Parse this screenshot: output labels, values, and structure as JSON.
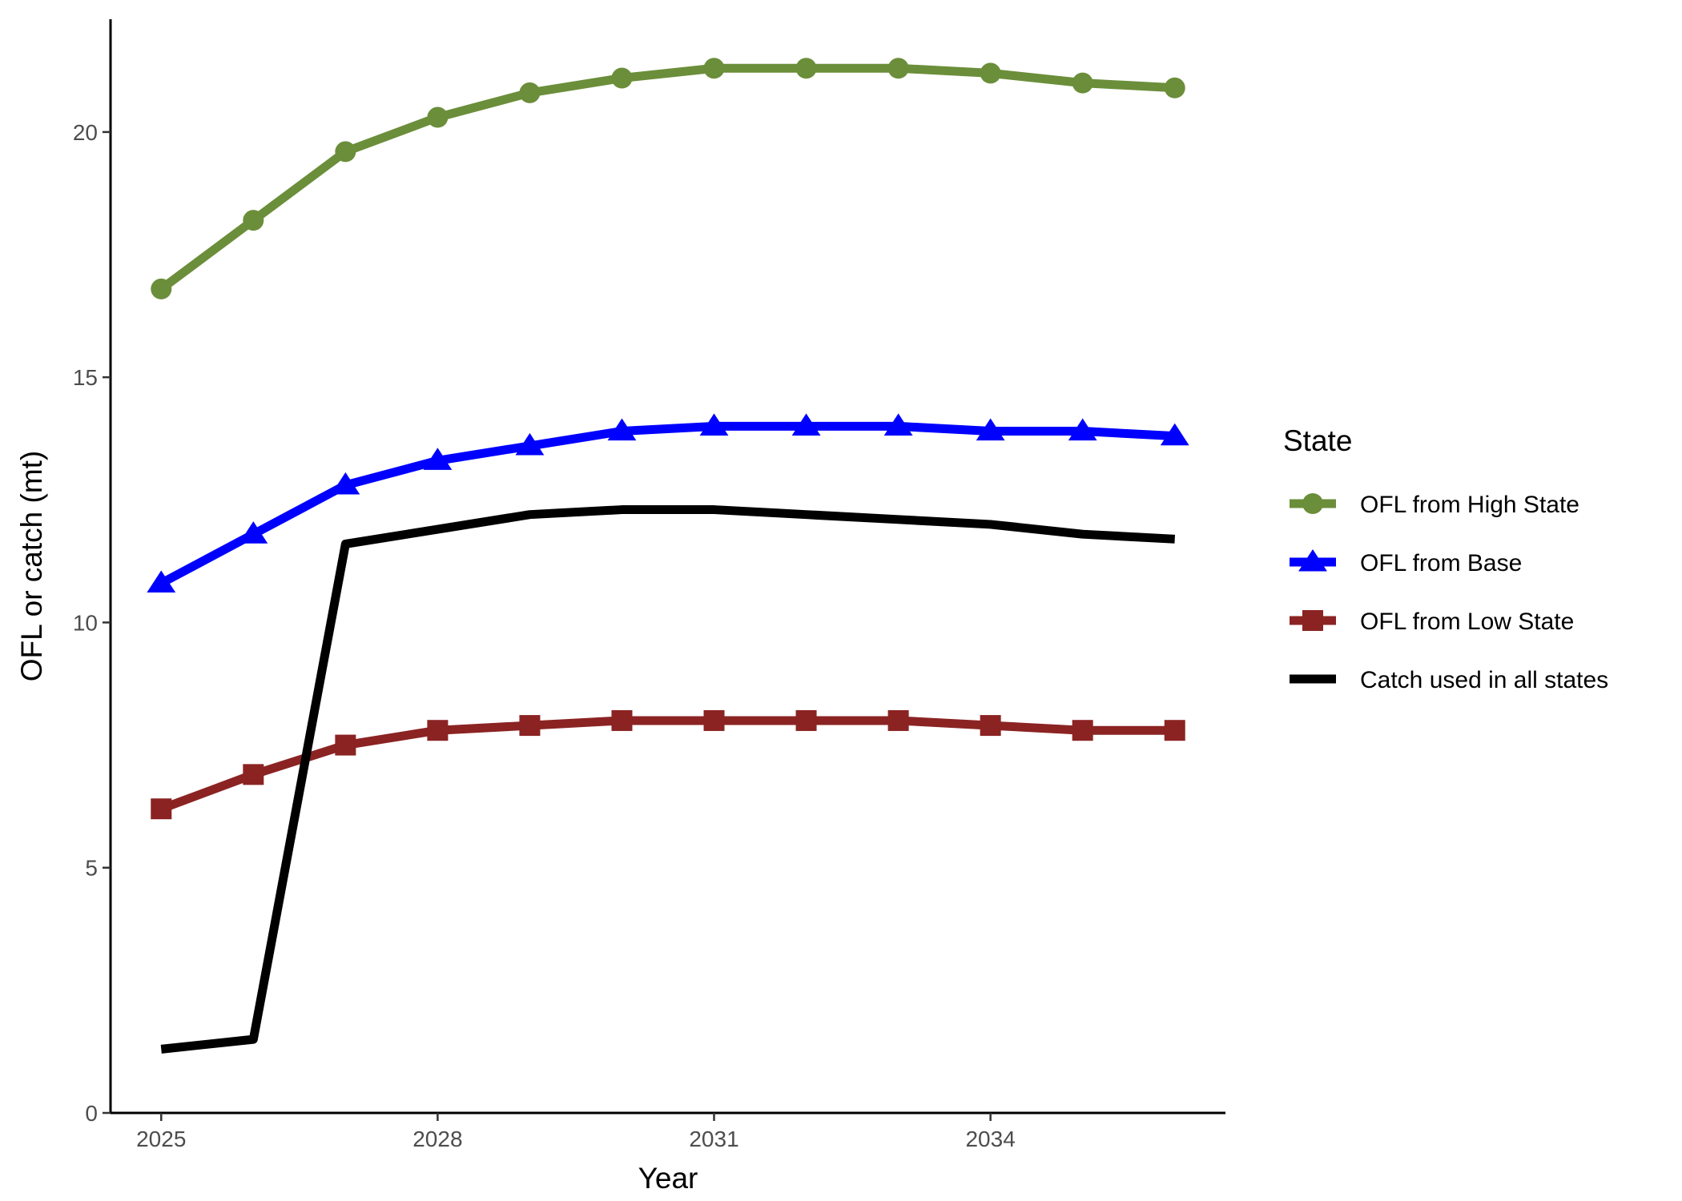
{
  "chart_data": {
    "type": "line",
    "title": "",
    "xlabel": "Year",
    "ylabel": "OFL or catch (mt)",
    "x": [
      2025,
      2026,
      2027,
      2028,
      2029,
      2030,
      2031,
      2032,
      2033,
      2034,
      2035,
      2036
    ],
    "xticks": [
      2025,
      2028,
      2031,
      2034
    ],
    "xtick_labels": [
      "2025",
      "2028",
      "2031",
      "2034"
    ],
    "xlim": [
      2024.45,
      2036.55
    ],
    "yticks": [
      0,
      5,
      10,
      15,
      20
    ],
    "ytick_labels": [
      "0",
      "5",
      "10",
      "15",
      "20"
    ],
    "ylim": [
      0,
      22.3
    ],
    "grid": false,
    "legend": {
      "title": "State",
      "position": "right"
    },
    "series": [
      {
        "name": "OFL from High State",
        "color": "#6b8e3a",
        "marker": "circle",
        "values": [
          16.8,
          18.2,
          19.6,
          20.3,
          20.8,
          21.1,
          21.3,
          21.3,
          21.3,
          21.2,
          21.0,
          20.9
        ]
      },
      {
        "name": "OFL from Base",
        "color": "#0000ff",
        "marker": "triangle",
        "values": [
          10.8,
          11.8,
          12.8,
          13.3,
          13.6,
          13.9,
          14.0,
          14.0,
          14.0,
          13.9,
          13.9,
          13.8
        ]
      },
      {
        "name": "OFL from Low State",
        "color": "#8b2323",
        "marker": "square",
        "values": [
          6.2,
          6.9,
          7.5,
          7.8,
          7.9,
          8.0,
          8.0,
          8.0,
          8.0,
          7.9,
          7.8,
          7.8
        ]
      },
      {
        "name": "Catch used in all states",
        "color": "#000000",
        "marker": "none",
        "values": [
          1.3,
          1.5,
          11.6,
          11.9,
          12.2,
          12.3,
          12.3,
          12.2,
          12.1,
          12.0,
          11.8,
          11.7
        ]
      }
    ]
  }
}
